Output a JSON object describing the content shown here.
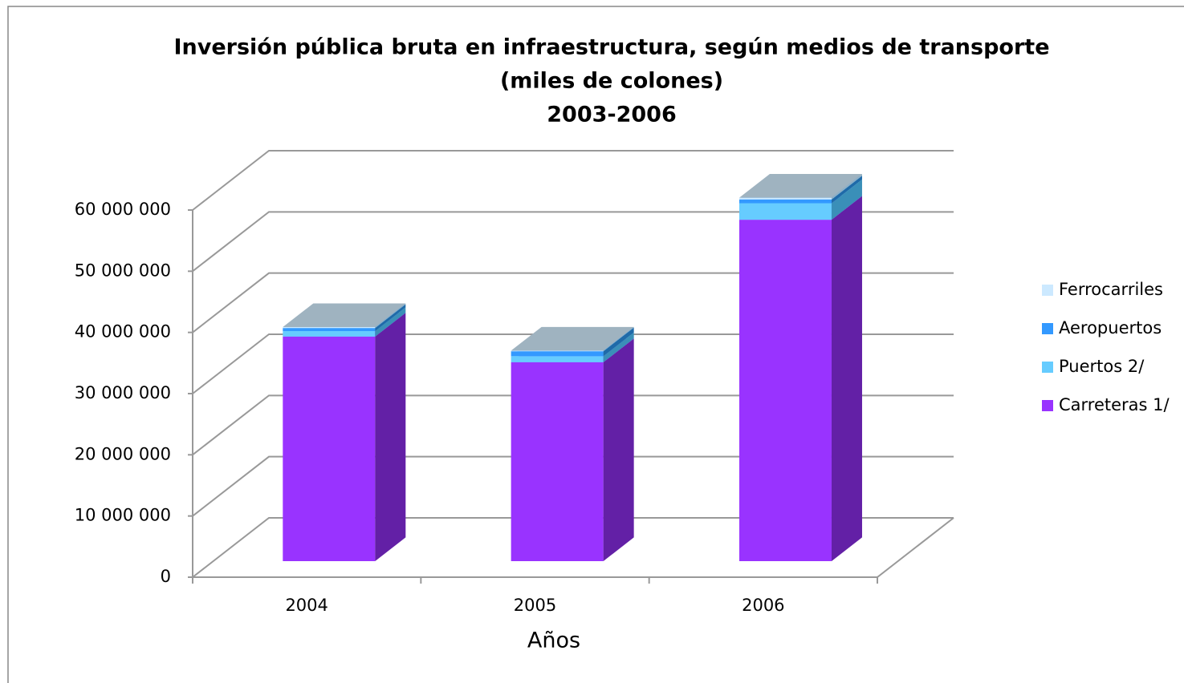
{
  "chart_data": {
    "type": "bar3d_stacked",
    "title": [
      "Inversión pública bruta en infraestructura, según medios de transporte",
      "(miles de colones)",
      "2003-2006"
    ],
    "x_label": "Años",
    "categories": [
      "2004",
      "2005",
      "2006"
    ],
    "series": [
      {
        "name": "Carreteras 1/",
        "color": "#9933ff",
        "side": "#6320a6",
        "values": [
          36700000,
          32500000,
          55800000
        ]
      },
      {
        "name": "Puertos 2/",
        "color": "#66ccff",
        "side": "#3a8fb8",
        "values": [
          900000,
          1000000,
          2700000
        ]
      },
      {
        "name": "Aeropuertos",
        "color": "#3399ff",
        "side": "#1f6aa8",
        "values": [
          500000,
          800000,
          600000
        ]
      },
      {
        "name": "Ferrocarriles",
        "color": "#cce9ff",
        "side": "#8fb0c4",
        "values": [
          150000,
          100000,
          300000
        ]
      }
    ],
    "ylim": [
      0,
      60000000
    ],
    "yticks": [
      0,
      {
        "value": 10000000,
        "label": "10 000 000"
      },
      {
        "value": 20000000,
        "label": "20 000 000"
      },
      {
        "value": 30000000,
        "label": "30 000 000"
      },
      {
        "value": 40000000,
        "label": "40 000 000"
      },
      {
        "value": 50000000,
        "label": "50 000 000"
      },
      {
        "value": 60000000,
        "label": "60 000 000"
      }
    ],
    "grid": true,
    "legend": "right"
  }
}
